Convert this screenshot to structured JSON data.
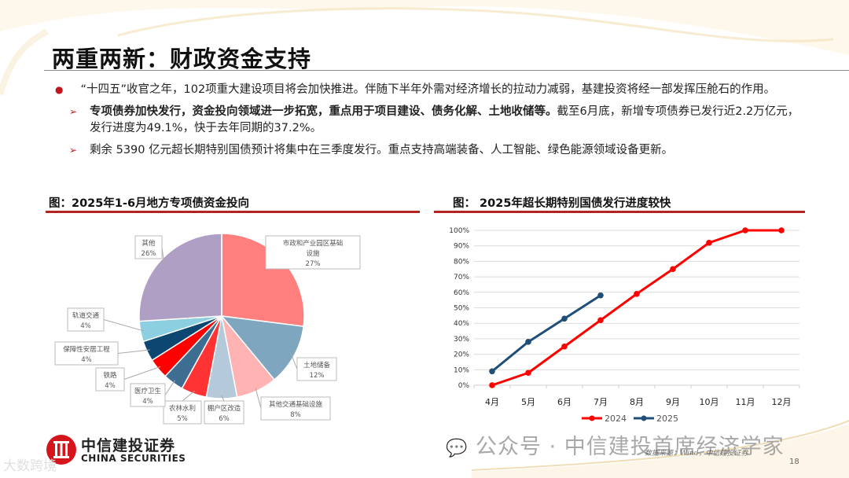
{
  "slide": {
    "title": "两重两新：财政资金支持",
    "page_number": "18",
    "source": "数据来源：Wind，中信建投证券",
    "watermark": "公众号 · 中信建投首席经济学家",
    "corner_watermark": "大数跨境",
    "logo": {
      "cn": "中信建投证券",
      "en": "CHINA SECURITIES"
    }
  },
  "bullets": {
    "main": "“十四五”收官之年，102项重大建设项目将会加快推进。伴随下半年外需对经济增长的拉动力减弱，基建投资将经一部发挥压舱石的作用。",
    "sub1_bold": "专项债券加快发行，资金投向领域进一步拓宽，重点用于项目建设、债务化解、土地收储等。",
    "sub1_rest": "截至6月底，新增专项债券已发行近2.2万亿元，发行进度为49.1%，快于去年同期的37.2%。",
    "sub2": "剩余 5390 亿元超长期特别国债预计将集中在三季度发行。重点支持高端装备、人工智能、绿色能源领域设备更新。"
  },
  "figures": {
    "left_title": "图：2025年1-6月地方专项债资金投向",
    "right_title": "图：  2025年超长期特别国债发行进度较快"
  },
  "colors": {
    "accent_red": "#c0161c",
    "rule_red": "#b52222",
    "series_2024": "#ff0000",
    "series_2025": "#1f4e79"
  },
  "chart_data": [
    {
      "type": "pie",
      "title": "图：2025年1-6月地方专项债资金投向",
      "categories": [
        "市政和产业园区基础设施",
        "土地储备",
        "其他交通基础设施",
        "棚户区改造",
        "农林水利",
        "医疗卫生",
        "铁路",
        "保障性安居工程",
        "轨道交通",
        "其他"
      ],
      "values": [
        27,
        12,
        8,
        6,
        5,
        4,
        4,
        4,
        4,
        26
      ],
      "labels": [
        "27%",
        "12%",
        "8%",
        "6%",
        "5%",
        "4%",
        "4%",
        "4%",
        "4%",
        "26%"
      ],
      "colors": [
        "#ff7f7f",
        "#7fa6bf",
        "#ffb3b3",
        "#b4cadb",
        "#ff3333",
        "#3d6e92",
        "#ff0000",
        "#0b4771",
        "#8ccfe0",
        "#b09fc4"
      ],
      "legend": "none (data callouts)"
    },
    {
      "type": "line",
      "title": "图：2025年超长期特别国债发行进度较快",
      "categories": [
        "4月",
        "5月",
        "6月",
        "7月",
        "8月",
        "9月",
        "10月",
        "11月",
        "12月"
      ],
      "series": [
        {
          "name": "2024",
          "values": [
            0,
            8,
            25,
            42,
            59,
            75,
            92,
            100,
            100
          ]
        },
        {
          "name": "2025",
          "values": [
            9,
            28,
            43,
            58,
            null,
            null,
            null,
            null,
            null
          ]
        }
      ],
      "yticks": [
        "0%",
        "10%",
        "20%",
        "30%",
        "40%",
        "50%",
        "60%",
        "70%",
        "80%",
        "90%",
        "100%"
      ],
      "ylim": [
        0,
        100
      ],
      "xlabel": "",
      "ylabel": "",
      "grid": true,
      "legend_position": "bottom"
    }
  ]
}
